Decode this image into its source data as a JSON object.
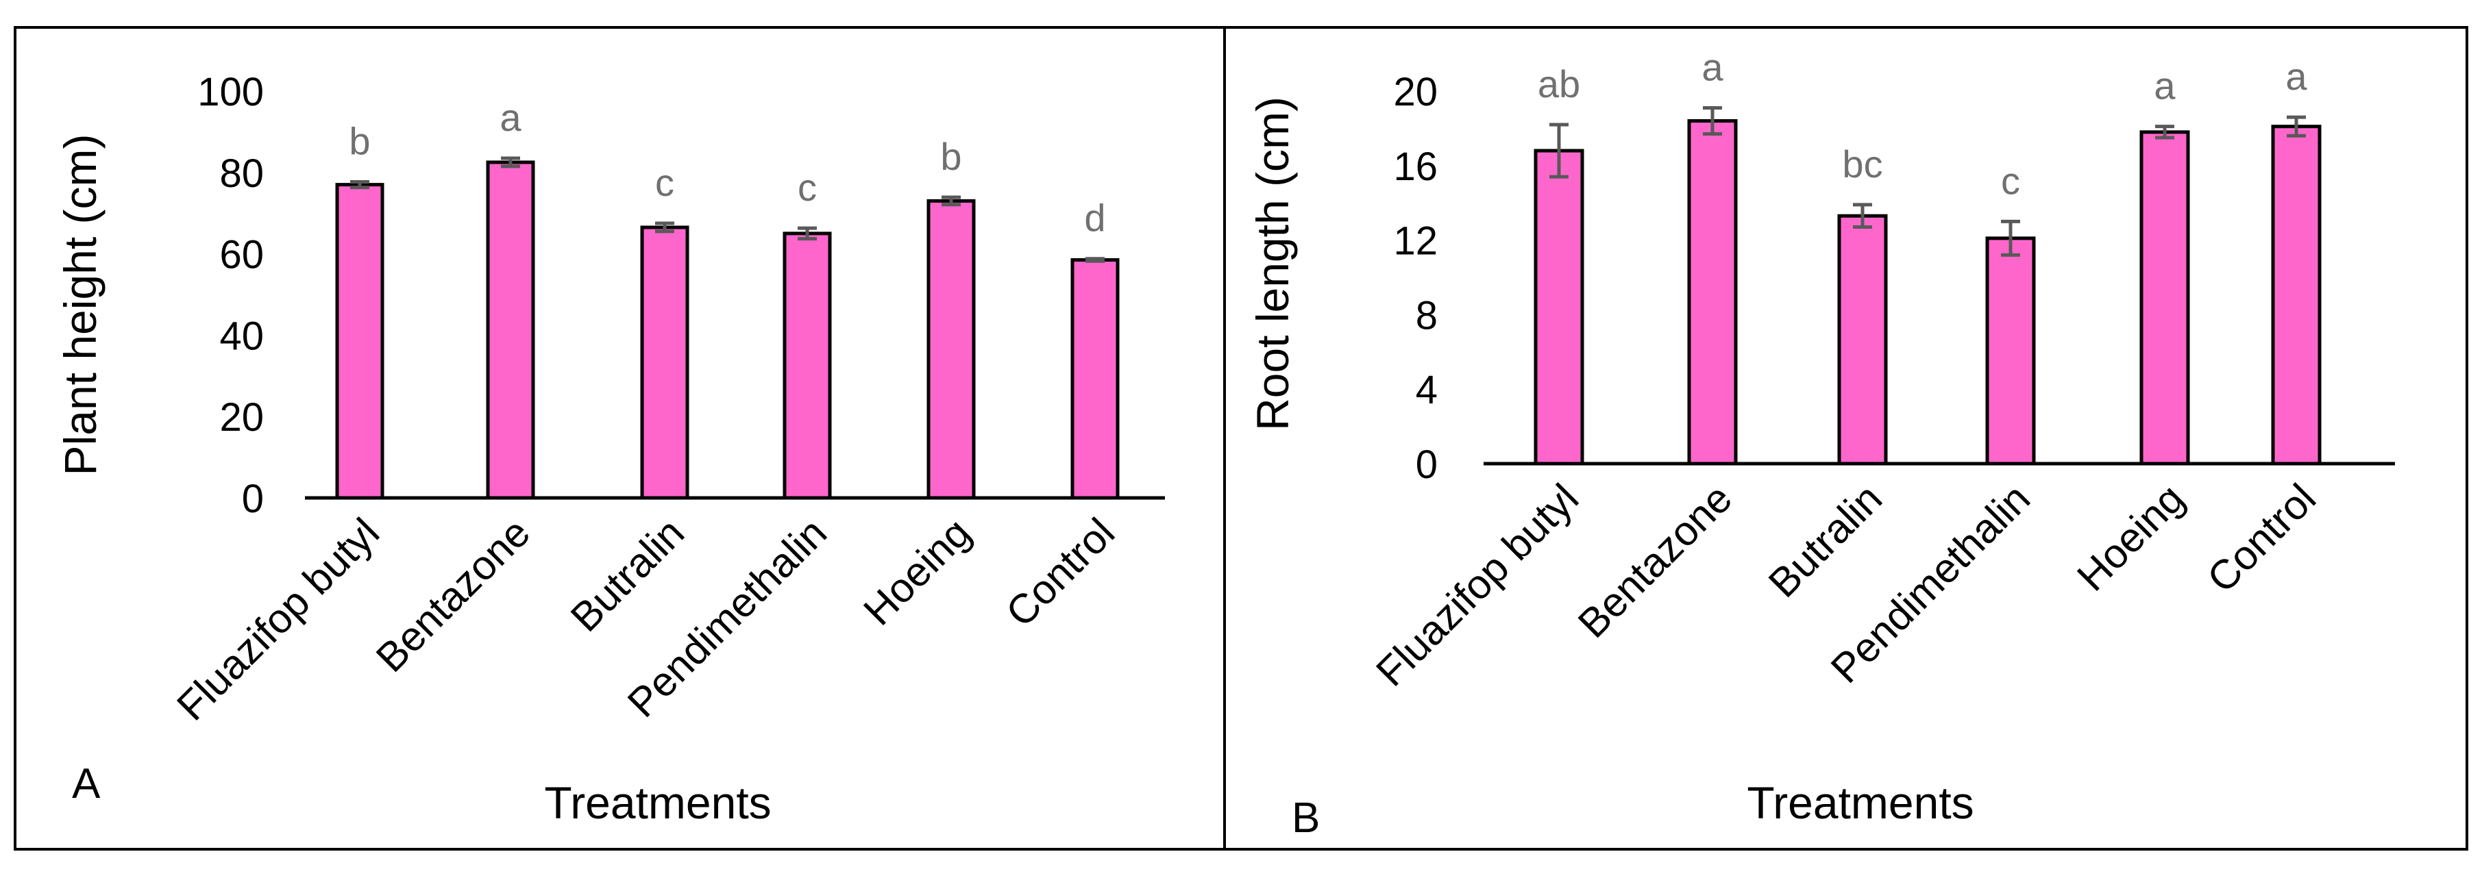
{
  "colors": {
    "bar_fill": "#ff66cc",
    "bar_stroke": "#000000",
    "error_bar": "#595959",
    "letter": "#707070",
    "text": "#000000",
    "panel_border": "#000000"
  },
  "chart_data": [
    {
      "type": "bar",
      "panel_label": "A",
      "categories": [
        "Fluazifop butyl",
        "Bentazone",
        "Butralin",
        "Pendimethalin",
        "Hoeing",
        "Control"
      ],
      "values": [
        77,
        82.5,
        66.5,
        65,
        73,
        58.5
      ],
      "errors": [
        0.7,
        1.0,
        1.0,
        1.3,
        0.9,
        0.3
      ],
      "letters": [
        "b",
        "a",
        "c",
        "c",
        "b",
        "d"
      ],
      "ylabel": "Plant height (cm)",
      "xlabel": "Treatments",
      "ylim": [
        0,
        100
      ],
      "yticks": [
        0,
        20,
        40,
        60,
        80,
        100
      ]
    },
    {
      "type": "bar",
      "panel_label": "B",
      "categories": [
        "Fluazifop butyl",
        "Bentazone",
        "Butralin",
        "Pendimethalin",
        "Hoeing",
        "Control"
      ],
      "values": [
        16.8,
        18.4,
        13.3,
        12.1,
        17.8,
        18.1
      ],
      "errors": [
        1.4,
        0.7,
        0.6,
        0.9,
        0.3,
        0.5
      ],
      "letters": [
        "ab",
        "a",
        "bc",
        "c",
        "a",
        "a"
      ],
      "ylabel": "Root length (cm)",
      "xlabel": "Treatments",
      "ylim": [
        0,
        20
      ],
      "yticks": [
        0,
        4,
        8,
        12,
        16,
        20
      ]
    }
  ]
}
